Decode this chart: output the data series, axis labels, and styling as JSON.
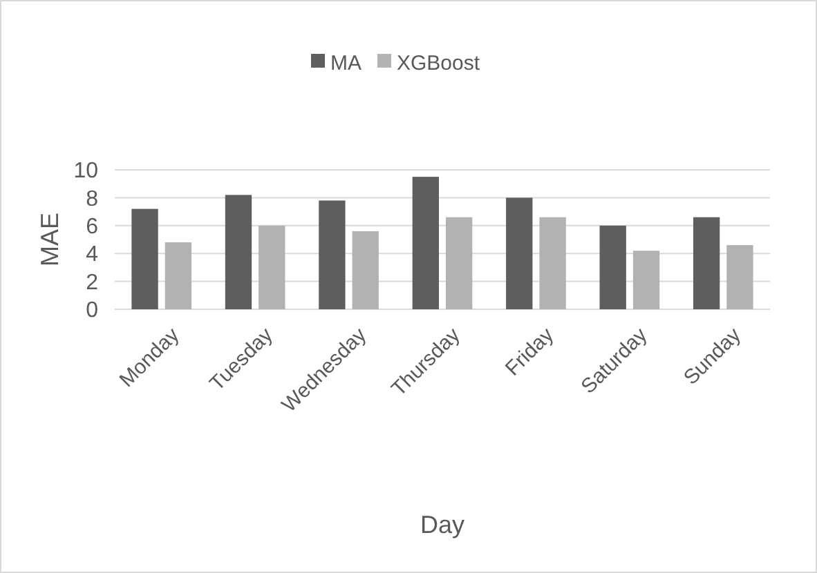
{
  "chart_data": {
    "type": "bar",
    "xlabel": "Day",
    "ylabel": "MAE",
    "categories": [
      "Monday",
      "Tuesday",
      "Wednesday",
      "Thursday",
      "Friday",
      "Saturday",
      "Sunday"
    ],
    "series": [
      {
        "name": "MA",
        "color": "#5e5e5e",
        "values": [
          7.2,
          8.2,
          7.8,
          9.5,
          8.0,
          6.0,
          6.6
        ]
      },
      {
        "name": "XGBoost",
        "color": "#b2b2b2",
        "values": [
          4.8,
          6.0,
          5.6,
          6.6,
          6.6,
          4.2,
          4.6
        ]
      }
    ],
    "ylim": [
      0,
      10
    ],
    "yticks": [
      0,
      2,
      4,
      6,
      8,
      10
    ],
    "grid": "y",
    "legend": "top"
  }
}
